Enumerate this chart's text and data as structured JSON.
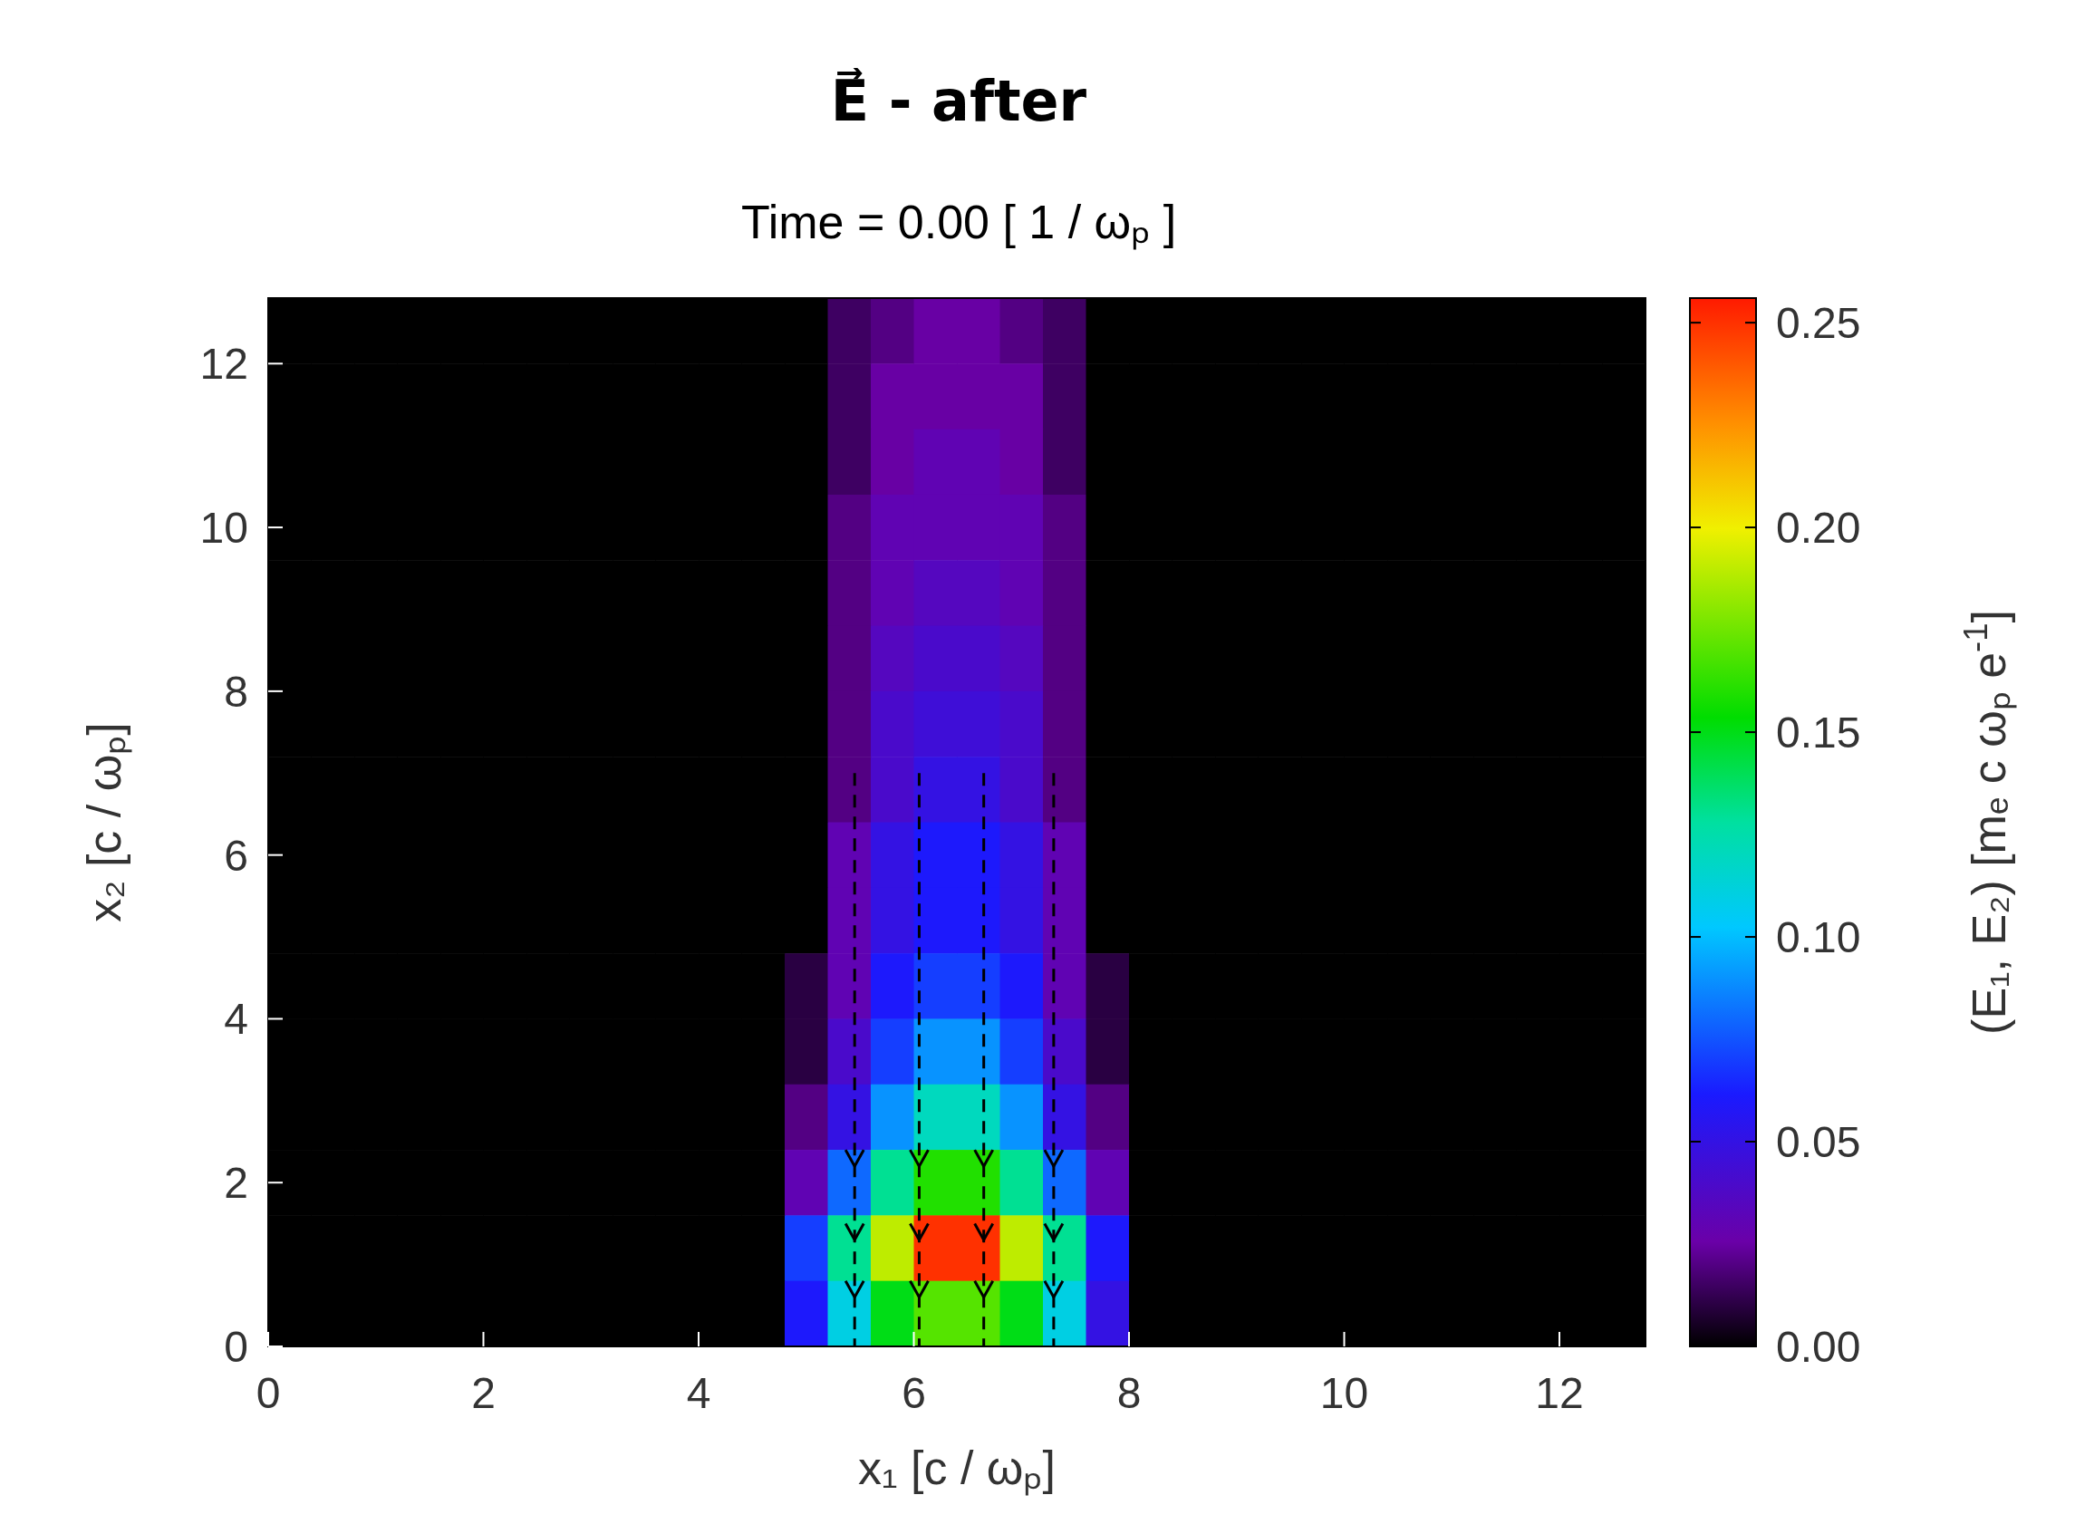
{
  "chart_data": {
    "type": "heatmap",
    "title": "E⃗ - after",
    "subtitle": "Time =    0.00 [ 1 / ωₚ ]",
    "xlabel": "x₁ [c / ωₚ]",
    "ylabel": "x₂ [c / ωₚ]",
    "clabel": "(E₁, E₂) [mₑ c ωₚ e$^{-1}$]",
    "xlim": [
      0,
      12.8
    ],
    "ylim": [
      0,
      12.8
    ],
    "xticks": [
      0,
      2,
      4,
      6,
      8,
      10,
      12
    ],
    "yticks": [
      0,
      2,
      4,
      6,
      8,
      10,
      12
    ],
    "clim": [
      0,
      0.256
    ],
    "cticks": [
      {
        "value": 0,
        "label": "0.00"
      },
      {
        "value": 0.05,
        "label": "0.05"
      },
      {
        "value": 0.1,
        "label": "0.10"
      },
      {
        "value": 0.15,
        "label": "0.15"
      },
      {
        "value": 0.2,
        "label": "0.20"
      },
      {
        "value": 0.25,
        "label": "0.25"
      }
    ],
    "cells": [
      [
        0,
        0,
        0,
        0,
        0,
        0,
        0,
        0,
        0,
        0,
        0,
        0,
        0,
        0.015,
        0.02,
        0.025,
        0.025,
        0.02,
        0.015,
        0,
        0,
        0,
        0,
        0,
        0,
        0,
        0,
        0,
        0,
        0,
        0,
        0
      ],
      [
        0,
        0,
        0,
        0,
        0,
        0,
        0,
        0,
        0,
        0,
        0,
        0,
        0,
        0.015,
        0.025,
        0.025,
        0.025,
        0.025,
        0.015,
        0,
        0,
        0,
        0,
        0,
        0,
        0,
        0,
        0,
        0,
        0,
        0,
        0
      ],
      [
        0,
        0,
        0,
        0,
        0,
        0,
        0,
        0,
        0,
        0,
        0,
        0,
        0,
        0.015,
        0.025,
        0.03,
        0.03,
        0.025,
        0.015,
        0,
        0,
        0,
        0,
        0,
        0,
        0,
        0,
        0,
        0,
        0,
        0,
        0
      ],
      [
        0,
        0,
        0,
        0,
        0,
        0,
        0,
        0,
        0,
        0,
        0,
        0,
        0,
        0.02,
        0.03,
        0.03,
        0.03,
        0.03,
        0.02,
        0,
        0,
        0,
        0,
        0,
        0,
        0,
        0,
        0,
        0,
        0,
        0,
        0
      ],
      [
        0,
        0,
        0,
        0,
        0,
        0,
        0,
        0,
        0,
        0,
        0,
        0,
        0,
        0.02,
        0.03,
        0.035,
        0.035,
        0.03,
        0.02,
        0,
        0,
        0,
        0,
        0,
        0,
        0,
        0,
        0,
        0,
        0,
        0,
        0
      ],
      [
        0,
        0,
        0,
        0,
        0,
        0,
        0,
        0,
        0,
        0,
        0,
        0,
        0,
        0.02,
        0.035,
        0.04,
        0.04,
        0.035,
        0.02,
        0,
        0,
        0,
        0,
        0,
        0,
        0,
        0,
        0,
        0,
        0,
        0,
        0
      ],
      [
        0,
        0,
        0,
        0,
        0,
        0,
        0,
        0,
        0,
        0,
        0,
        0,
        0,
        0.02,
        0.04,
        0.045,
        0.045,
        0.04,
        0.02,
        0,
        0,
        0,
        0,
        0,
        0,
        0,
        0,
        0,
        0,
        0,
        0,
        0
      ],
      [
        0,
        0,
        0,
        0,
        0,
        0,
        0,
        0,
        0,
        0,
        0,
        0,
        0,
        0.02,
        0.04,
        0.05,
        0.05,
        0.04,
        0.02,
        0,
        0,
        0,
        0,
        0,
        0,
        0,
        0,
        0,
        0,
        0,
        0,
        0
      ],
      [
        0,
        0,
        0,
        0,
        0,
        0,
        0,
        0,
        0,
        0,
        0,
        0,
        0,
        0.03,
        0.05,
        0.06,
        0.06,
        0.05,
        0.03,
        0,
        0,
        0,
        0,
        0,
        0,
        0,
        0,
        0,
        0,
        0,
        0,
        0
      ],
      [
        0,
        0,
        0,
        0,
        0,
        0,
        0,
        0,
        0,
        0,
        0,
        0,
        0,
        0.03,
        0.05,
        0.06,
        0.06,
        0.05,
        0.03,
        0,
        0,
        0,
        0,
        0,
        0,
        0,
        0,
        0,
        0,
        0,
        0,
        0
      ],
      [
        0,
        0,
        0,
        0,
        0,
        0,
        0,
        0,
        0,
        0,
        0,
        0,
        0.01,
        0.03,
        0.06,
        0.07,
        0.07,
        0.06,
        0.03,
        0.01,
        0,
        0,
        0,
        0,
        0,
        0,
        0,
        0,
        0,
        0,
        0,
        0
      ],
      [
        0,
        0,
        0,
        0,
        0,
        0,
        0,
        0,
        0,
        0,
        0,
        0,
        0.01,
        0.04,
        0.07,
        0.09,
        0.09,
        0.07,
        0.04,
        0.01,
        0,
        0,
        0,
        0,
        0,
        0,
        0,
        0,
        0,
        0,
        0,
        0
      ],
      [
        0,
        0,
        0,
        0,
        0,
        0,
        0,
        0,
        0,
        0,
        0,
        0,
        0.02,
        0.05,
        0.09,
        0.12,
        0.12,
        0.09,
        0.05,
        0.02,
        0,
        0,
        0,
        0,
        0,
        0,
        0,
        0,
        0,
        0,
        0,
        0
      ],
      [
        0,
        0,
        0,
        0,
        0,
        0,
        0,
        0,
        0,
        0,
        0,
        0,
        0.03,
        0.08,
        0.13,
        0.16,
        0.16,
        0.13,
        0.08,
        0.03,
        0,
        0,
        0,
        0,
        0,
        0,
        0,
        0,
        0,
        0,
        0,
        0
      ],
      [
        0,
        0,
        0,
        0,
        0,
        0,
        0,
        0,
        0,
        0,
        0,
        0,
        0.07,
        0.13,
        0.19,
        0.25,
        0.25,
        0.19,
        0.13,
        0.06,
        0,
        0,
        0,
        0,
        0,
        0,
        0,
        0,
        0,
        0,
        0,
        0
      ],
      [
        0,
        0,
        0,
        0,
        0,
        0,
        0,
        0,
        0,
        0,
        0,
        0,
        0.06,
        0.11,
        0.15,
        0.17,
        0.17,
        0.15,
        0.11,
        0.05,
        0,
        0,
        0,
        0,
        0,
        0,
        0,
        0,
        0,
        0,
        0,
        0
      ]
    ]
  }
}
